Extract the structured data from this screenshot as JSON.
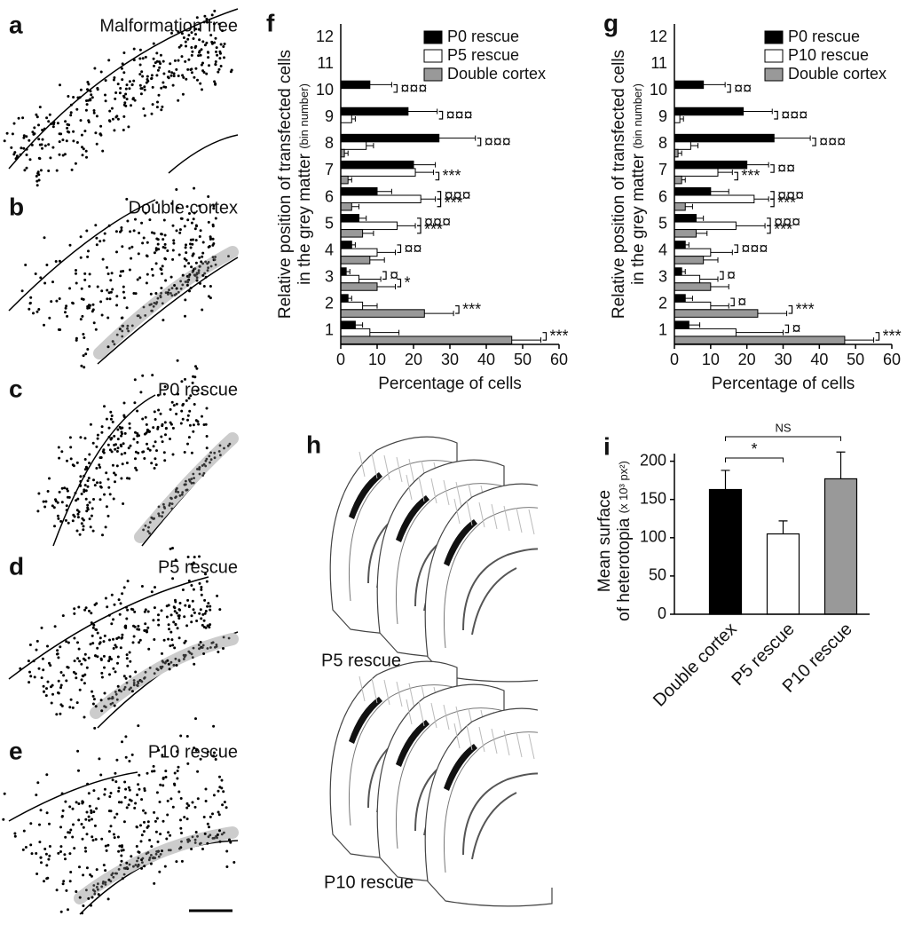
{
  "panels": [
    {
      "letter": "a",
      "title": "Malformation free"
    },
    {
      "letter": "b",
      "title": "Double cortex"
    },
    {
      "letter": "c",
      "title": "P0 rescue"
    },
    {
      "letter": "d",
      "title": "P5 rescue"
    },
    {
      "letter": "e",
      "title": "P10 rescue"
    }
  ],
  "slices": {
    "letter": "h",
    "labels": [
      "P5 rescue",
      "P10 rescue"
    ]
  },
  "chart_data": [
    {
      "type": "bar",
      "orientation": "horizontal",
      "panel_letter": "f",
      "categories": [
        "1",
        "2",
        "3",
        "4",
        "5",
        "6",
        "7",
        "8",
        "9",
        "10",
        "11",
        "12"
      ],
      "series": [
        {
          "name": "P0 rescue",
          "color": "#000000",
          "values": [
            4,
            2,
            1.5,
            3,
            5,
            10,
            20,
            27,
            18.5,
            8,
            0,
            0
          ],
          "errors": [
            2,
            1,
            1,
            1,
            2,
            4,
            6,
            10,
            8,
            6,
            0,
            0
          ]
        },
        {
          "name": "P5 rescue",
          "color": "#ffffff",
          "values": [
            8,
            6,
            5,
            10,
            15.5,
            22,
            20.5,
            7,
            3,
            0,
            0,
            0
          ],
          "errors": [
            8,
            4,
            6,
            5,
            5,
            4,
            5,
            2,
            1,
            0,
            0,
            0
          ],
          "significance": [
            null,
            null,
            "¤",
            "¤¤",
            "¤¤¤",
            "¤¤¤",
            null,
            "¤¤¤",
            "¤¤¤",
            "¤¤¤",
            null,
            null
          ]
        },
        {
          "name": "Double cortex",
          "color": "#999999",
          "values": [
            47,
            23,
            10,
            8,
            6,
            3,
            2,
            1,
            0,
            0,
            0,
            0
          ],
          "errors": [
            8,
            8,
            5,
            4,
            3,
            2,
            1,
            1,
            0,
            0,
            0,
            0
          ],
          "significance": [
            "***",
            "***",
            "*",
            null,
            "***",
            "***",
            "***",
            null,
            null,
            null,
            null,
            null
          ]
        }
      ],
      "xlim": [
        0,
        60
      ],
      "xticks": [
        0,
        10,
        20,
        30,
        40,
        50,
        60
      ],
      "xlabel": "Percentage of cells",
      "ylabel": [
        "Relative position of transfected cells",
        "in the grey matter"
      ],
      "ylabel_unit": "(bin number)"
    },
    {
      "type": "bar",
      "orientation": "horizontal",
      "panel_letter": "g",
      "categories": [
        "1",
        "2",
        "3",
        "4",
        "5",
        "6",
        "7",
        "8",
        "9",
        "10",
        "11",
        "12"
      ],
      "series": [
        {
          "name": "P0 rescue",
          "color": "#000000",
          "values": [
            4,
            3,
            2,
            3,
            6,
            10,
            20,
            27.5,
            19,
            8,
            0,
            0
          ],
          "errors": [
            3,
            2,
            1,
            1,
            2,
            5,
            6,
            10,
            8,
            6,
            0,
            0
          ]
        },
        {
          "name": "P10 rescue",
          "color": "#ffffff",
          "values": [
            17,
            10,
            7,
            10,
            17,
            22,
            12,
            4.5,
            1.5,
            0,
            0,
            0
          ],
          "errors": [
            13,
            5,
            5,
            6,
            8,
            4,
            4,
            2,
            1,
            0,
            0,
            0
          ],
          "significance": [
            "¤",
            "¤",
            "¤",
            "¤¤¤",
            "¤¤¤",
            "¤¤¤",
            "¤¤",
            "¤¤¤",
            "¤¤¤",
            "¤¤",
            null,
            null
          ]
        },
        {
          "name": "Double cortex",
          "color": "#999999",
          "values": [
            47,
            23,
            10,
            8,
            6,
            3,
            2,
            1,
            0,
            0,
            0,
            0
          ],
          "errors": [
            8,
            8,
            5,
            4,
            3,
            2,
            1,
            1,
            0,
            0,
            0,
            0
          ],
          "significance": [
            "***",
            "***",
            null,
            null,
            "***",
            "***",
            "***",
            null,
            null,
            null,
            null,
            null
          ]
        }
      ],
      "xlim": [
        0,
        60
      ],
      "xticks": [
        0,
        10,
        20,
        30,
        40,
        50,
        60
      ],
      "xlabel": "Percentage of cells",
      "ylabel": [
        "Relative position of transfected cells",
        "in the grey matter"
      ],
      "ylabel_unit": "(bin number)"
    },
    {
      "type": "bar",
      "panel_letter": "i",
      "categories": [
        "Double cortex",
        "P5 rescue",
        "P10 rescue"
      ],
      "values": [
        163,
        105,
        177
      ],
      "errors": [
        25,
        17,
        35
      ],
      "colors": [
        "#000000",
        "#ffffff",
        "#999999"
      ],
      "ylim": [
        0,
        210
      ],
      "yticks": [
        0,
        50,
        100,
        150,
        200
      ],
      "ylabel": [
        "Mean surface",
        "of heterotopia"
      ],
      "ylabel_unit": "(x 10³ px²)",
      "comparisons": [
        {
          "text": "*",
          "between": [
            "Double cortex",
            "P5 rescue"
          ]
        },
        {
          "text": "NS",
          "between": [
            "Double cortex",
            "P10 rescue"
          ]
        }
      ]
    }
  ]
}
